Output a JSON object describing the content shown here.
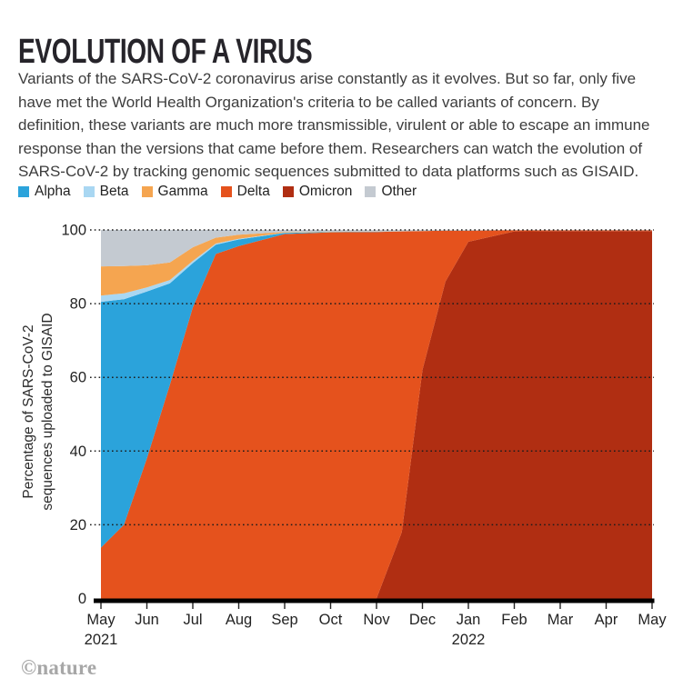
{
  "header": {
    "title": "EVOLUTION OF A VIRUS",
    "description": "Variants of the SARS-CoV-2 coronavirus arise constantly as it evolves. But so far, only five have met the World Health Organization's criteria to be called variants of concern. By definition, these variants are much more transmissible, virulent or able to escape an immune response than the versions that came before them. Researchers can watch the evolution of SARS-CoV-2 by tracking genomic sequences submitted to data platforms such as GISAID."
  },
  "legend": {
    "order": [
      "Alpha",
      "Beta",
      "Gamma",
      "Delta",
      "Omicron",
      "Other"
    ]
  },
  "chart_data": {
    "type": "area",
    "stacked": true,
    "grid": "dotted horizontal",
    "legend_position": "top",
    "ylabel_lines": [
      "Percentage of SARS-CoV-2",
      "sequences uploaded to GISAID"
    ],
    "y_ticks": [
      0,
      20,
      40,
      60,
      80,
      100
    ],
    "ylim": [
      0,
      100
    ],
    "x_unit": "months since May 2021",
    "x_tick_labels": [
      "May",
      "Jun",
      "Jul",
      "Aug",
      "Sep",
      "Oct",
      "Nov",
      "Dec",
      "Jan",
      "Feb",
      "Mar",
      "Apr",
      "May"
    ],
    "x_year_labels": [
      {
        "tick": 0,
        "label": "2021"
      },
      {
        "tick": 8,
        "label": "2022"
      }
    ],
    "x": [
      0,
      0.5,
      1,
      1.5,
      2,
      2.5,
      3,
      4,
      5,
      6,
      6.55,
      7,
      7.5,
      8,
      9,
      10,
      11,
      12
    ],
    "series": [
      {
        "name": "Omicron",
        "color": "#b02e12",
        "values": [
          0,
          0,
          0,
          0,
          0,
          0,
          0,
          0,
          0,
          0,
          18,
          62,
          86,
          96.8,
          99.6,
          99.7,
          99.7,
          99.7
        ]
      },
      {
        "name": "Delta",
        "color": "#e5521d",
        "values": [
          13.8,
          20,
          38,
          58,
          79,
          93.5,
          95.6,
          98.9,
          99.35,
          99.45,
          81.6,
          37.7,
          13.8,
          3.0,
          0.3,
          0.2,
          0.2,
          0.2
        ]
      },
      {
        "name": "Alpha",
        "color": "#2ba3db",
        "values": [
          66.7,
          61.2,
          45.3,
          27.5,
          12,
          2.5,
          1.8,
          0.3,
          0.1,
          0.05,
          0,
          0,
          0,
          0,
          0,
          0,
          0,
          0
        ]
      },
      {
        "name": "Beta",
        "color": "#a9d7f2",
        "values": [
          1.7,
          1.6,
          1.1,
          0.9,
          0.6,
          0.3,
          0.2,
          0.05,
          0,
          0,
          0,
          0,
          0,
          0,
          0,
          0,
          0,
          0
        ]
      },
      {
        "name": "Gamma",
        "color": "#f5a550",
        "values": [
          7.9,
          7.4,
          6.0,
          4.8,
          3.7,
          1.6,
          1.1,
          0.2,
          0.05,
          0.05,
          0.02,
          0.02,
          0.02,
          0,
          0,
          0,
          0,
          0
        ]
      },
      {
        "name": "Other",
        "color": "#c4cad1",
        "values": [
          9.9,
          9.8,
          9.6,
          8.8,
          4.7,
          2.1,
          1.3,
          0.55,
          0.5,
          0.45,
          0.38,
          0.28,
          0.18,
          0.2,
          0.1,
          0.1,
          0.1,
          0.1
        ]
      }
    ]
  },
  "footer": {
    "credit": "©nature"
  }
}
